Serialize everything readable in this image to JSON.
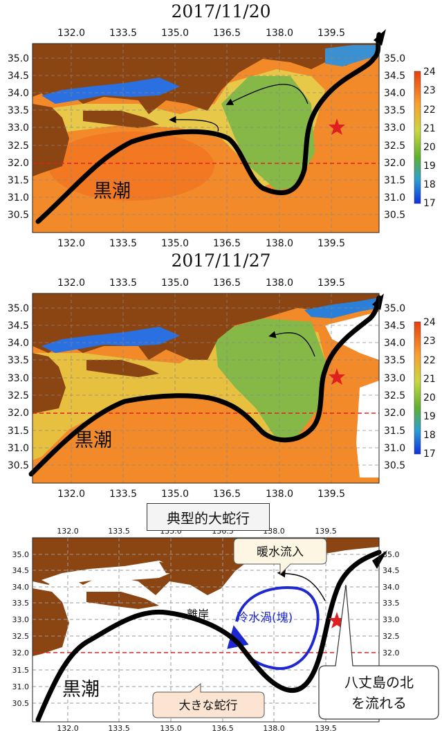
{
  "panels": [
    {
      "title": "2017/11/20",
      "kuroshio_label": "黒潮"
    },
    {
      "title": "2017/11/27",
      "kuroshio_label": "黒潮"
    }
  ],
  "x_ticks": [
    "132.0",
    "133.5",
    "135.0",
    "136.5",
    "138.0",
    "139.5"
  ],
  "y_ticks": [
    "35.0",
    "34.5",
    "34.0",
    "33.5",
    "33.0",
    "32.5",
    "32.0",
    "31.5",
    "31.0",
    "30.5"
  ],
  "colorbar_ticks": [
    "24",
    "23",
    "22",
    "21",
    "20",
    "19",
    "18",
    "17"
  ],
  "colors": {
    "land": "#8b4513",
    "warm": "#f07820",
    "cool": "#7ab040",
    "cold": "#2060e0",
    "kuroshio": "#000000",
    "eddy": "#1e28d0",
    "reference_line": "#e02020",
    "star": "#e02020"
  },
  "typical_label": "典型的大蛇行",
  "schematic": {
    "kuroshio_label": "黒潮",
    "warm_inflow": "暖水流入",
    "offshore": "離岸",
    "cold_eddy": "冷水渦(塊)",
    "large_meander": "大きな蛇行",
    "hachijo_line1": "八丈島の北",
    "hachijo_line2": "を流れる"
  }
}
